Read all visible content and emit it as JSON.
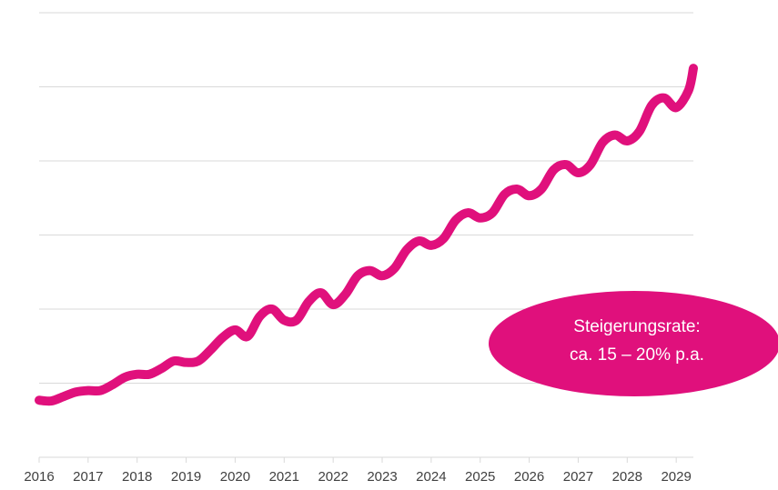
{
  "chart_data": {
    "type": "line",
    "x": [
      2016,
      2016.25,
      2016.5,
      2016.75,
      2017,
      2017.25,
      2017.5,
      2017.75,
      2018,
      2018.25,
      2018.5,
      2018.75,
      2019,
      2019.25,
      2019.5,
      2019.75,
      2020,
      2020.25,
      2020.5,
      2020.75,
      2021,
      2021.25,
      2021.5,
      2021.75,
      2022,
      2022.25,
      2022.5,
      2022.75,
      2023,
      2023.25,
      2023.5,
      2023.75,
      2024,
      2024.25,
      2024.5,
      2024.75,
      2025,
      2025.25,
      2025.5,
      2025.75,
      2026,
      2026.25,
      2026.5,
      2026.75,
      2027,
      2027.25,
      2027.5,
      2027.75,
      2028,
      2028.25,
      2028.5,
      2028.75,
      2029,
      2029.25,
      2029.35
    ],
    "series": [
      {
        "color": "#e0107c",
        "values": [
          0.77,
          0.76,
          0.82,
          0.88,
          0.9,
          0.9,
          0.98,
          1.08,
          1.12,
          1.12,
          1.2,
          1.3,
          1.28,
          1.3,
          1.45,
          1.62,
          1.72,
          1.63,
          1.9,
          2.0,
          1.85,
          1.85,
          2.1,
          2.22,
          2.06,
          2.2,
          2.45,
          2.52,
          2.45,
          2.55,
          2.8,
          2.92,
          2.86,
          2.95,
          3.2,
          3.3,
          3.23,
          3.3,
          3.55,
          3.62,
          3.53,
          3.62,
          3.88,
          3.95,
          3.84,
          3.95,
          4.25,
          4.35,
          4.27,
          4.4,
          4.75,
          4.85,
          4.72,
          4.95,
          5.25
        ]
      }
    ],
    "xlim": [
      2016,
      2029.35
    ],
    "xticks": [
      2016,
      2017,
      2018,
      2019,
      2020,
      2021,
      2022,
      2023,
      2024,
      2025,
      2026,
      2027,
      2028,
      2029
    ],
    "ylim": [
      0,
      6
    ],
    "yticks": [
      0,
      1,
      2,
      3,
      4,
      5,
      6
    ],
    "grid": true,
    "annotation": {
      "lines": [
        "Steigerungsrate:",
        "ca. 15 – 20% p.a."
      ],
      "color": "#e0107c"
    }
  }
}
